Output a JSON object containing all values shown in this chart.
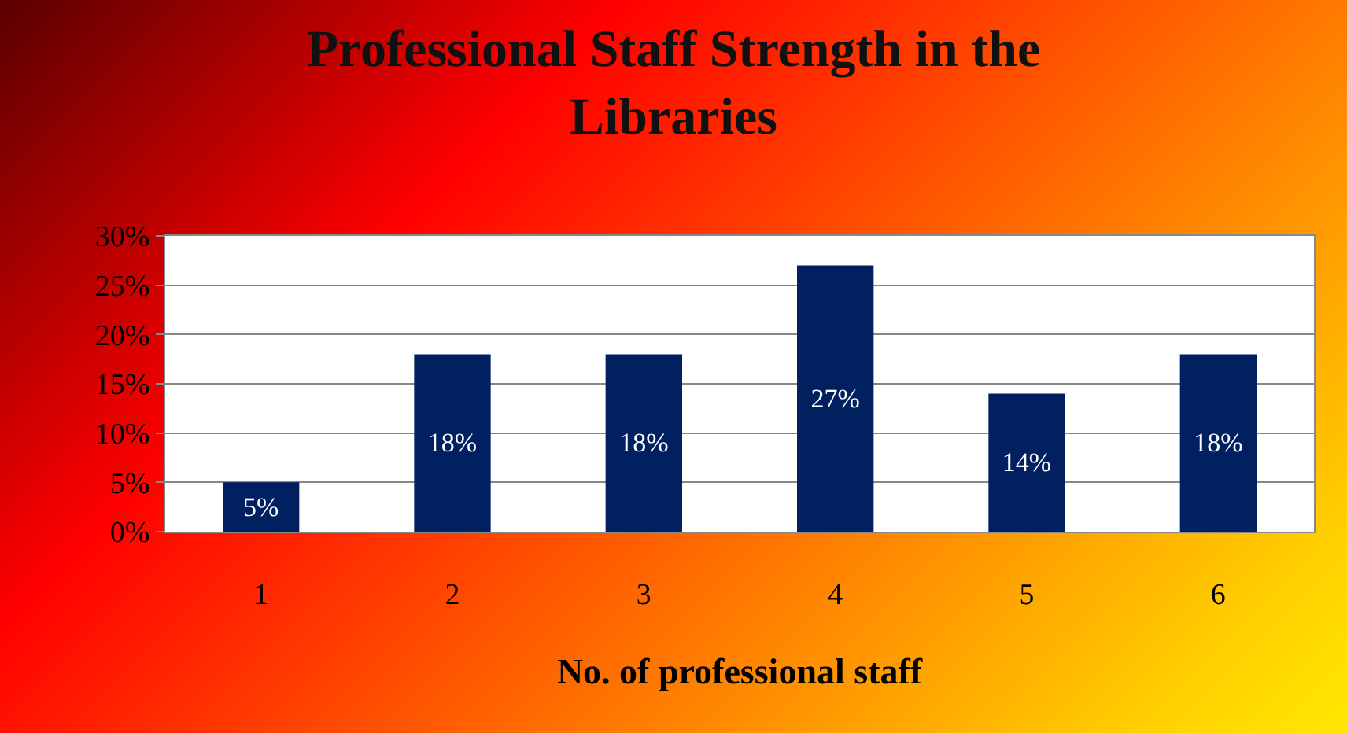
{
  "chart_data": {
    "type": "bar",
    "title": "Professional Staff Strength in the Libraries",
    "xlabel": "No. of professional staff",
    "categories": [
      "1",
      "2",
      "3",
      "4",
      "5",
      "6"
    ],
    "values": [
      5,
      18,
      18,
      27,
      14,
      18
    ],
    "value_labels": [
      "5%",
      "18%",
      "18%",
      "27%",
      "14%",
      "18%"
    ],
    "color": "#002060",
    "ylim": [
      0,
      30
    ],
    "yticks": [
      {
        "value": 0,
        "label": "0%"
      },
      {
        "value": 5,
        "label": "5%"
      },
      {
        "value": 10,
        "label": "10%"
      },
      {
        "value": 15,
        "label": "15%"
      },
      {
        "value": 20,
        "label": "20%"
      },
      {
        "value": 25,
        "label": "25%"
      },
      {
        "value": 30,
        "label": "30%"
      }
    ],
    "grid": "y"
  }
}
